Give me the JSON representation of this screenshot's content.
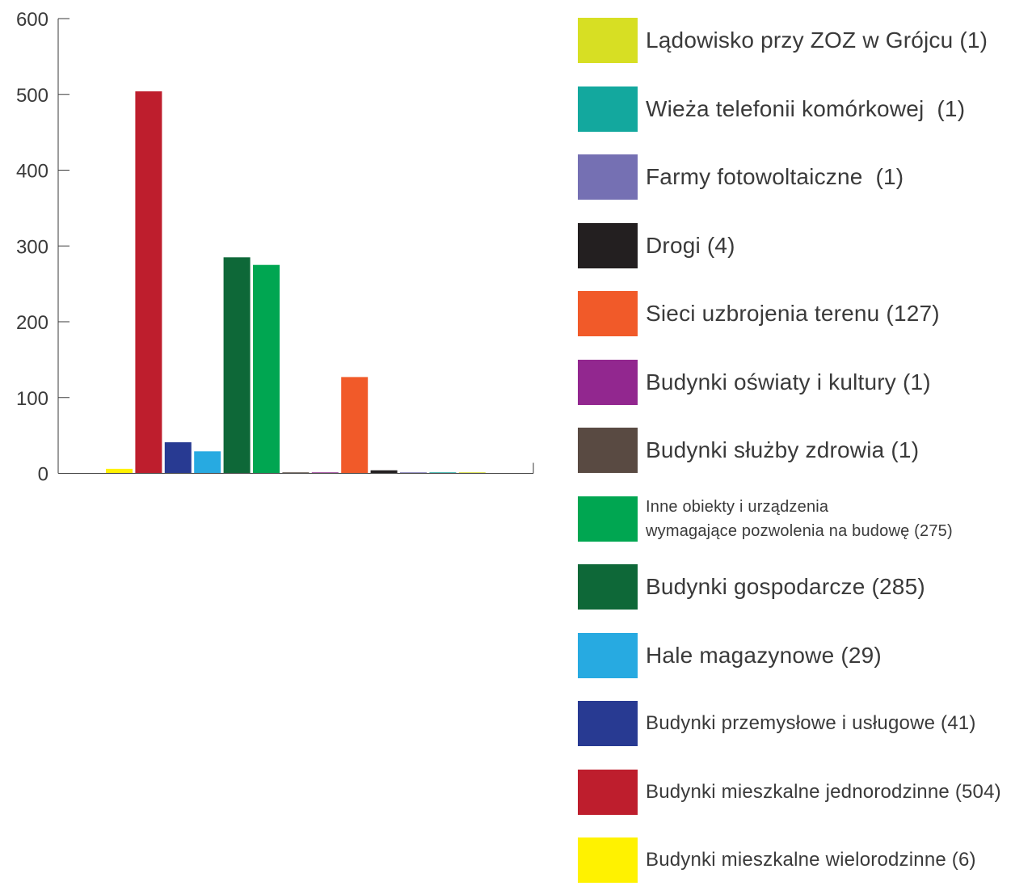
{
  "chart_data": {
    "type": "bar",
    "title": "",
    "xlabel": "",
    "ylabel": "",
    "ylim": [
      0,
      600
    ],
    "yticks": [
      0,
      100,
      200,
      300,
      400,
      500,
      600
    ],
    "grid": false,
    "legend_position": "right",
    "categories": [
      "Budynki mieszkalne wielorodzinne (6)",
      "Budynki mieszkalne jednorodzinne (504)",
      "Budynki przemysłowe i usługowe (41)",
      "Hale magazynowe (29)",
      "Budynki gospodarcze (285)",
      "Inne obiekty i urządzenia wymagające pozwolenia na budowę (275)",
      "Budynki służby zdrowia (1)",
      "Budynki oświaty i kultury (1)",
      "Sieci uzbrojenia terenu (127)",
      "Drogi (4)",
      "Farmy fotowoltaiczne  (1)",
      "Wieża telefonii komórkowej  (1)",
      "Lądowisko przy ZOZ w Grójcu (1)"
    ],
    "values": [
      6,
      504,
      41,
      29,
      285,
      275,
      1,
      1,
      127,
      4,
      1,
      1,
      1
    ],
    "colors": [
      "#fff200",
      "#be1e2d",
      "#283a92",
      "#27aae1",
      "#0e6838",
      "#00a651",
      "#594a42",
      "#92278f",
      "#f15a29",
      "#231f20",
      "#7570b3",
      "#13a89e",
      "#d7df23"
    ]
  },
  "legend": [
    {
      "label": "Lądowisko przy ZOZ w Grójcu (1)",
      "color": "#d7df23"
    },
    {
      "label": "Wieża telefonii komórkowej  (1)",
      "color": "#13a89e"
    },
    {
      "label": "Farmy fotowoltaiczne  (1)",
      "color": "#7570b3"
    },
    {
      "label": "Drogi (4)",
      "color": "#231f20"
    },
    {
      "label": "Sieci uzbrojenia terenu (127)",
      "color": "#f15a29"
    },
    {
      "label": "Budynki oświaty i kultury (1)",
      "color": "#92278f"
    },
    {
      "label": "Budynki służby zdrowia (1)",
      "color": "#594a42"
    },
    {
      "label": "Inne obiekty i urządzenia\nwymagające pozwolenia na budowę (275)",
      "color": "#00a651"
    },
    {
      "label": "Budynki gospodarcze (285)",
      "color": "#0e6838"
    },
    {
      "label": "Hale magazynowe (29)",
      "color": "#27aae1"
    },
    {
      "label": "Budynki przemysłowe i usługowe (41)",
      "color": "#283a92"
    },
    {
      "label": "Budynki mieszkalne jednorodzinne (504)",
      "color": "#be1e2d"
    },
    {
      "label": "Budynki mieszkalne wielorodzinne (6)",
      "color": "#fff200"
    }
  ]
}
